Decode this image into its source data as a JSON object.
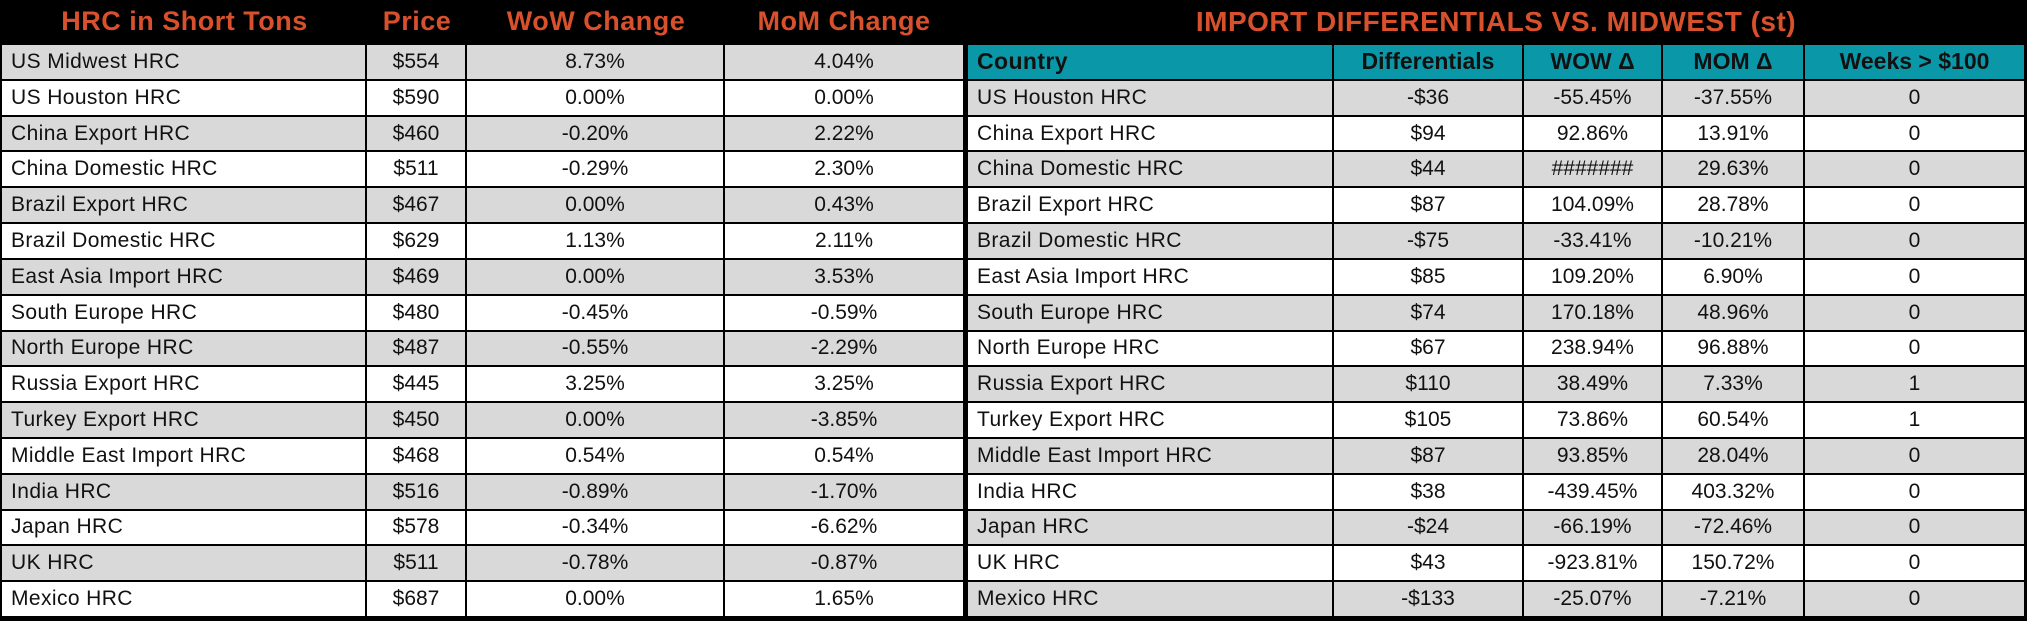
{
  "colors": {
    "accent_orange": "#d8502c",
    "header_black": "#000000",
    "teal_header": "#0a98a8",
    "row_shade_gray": "#d9d9d9"
  },
  "left_table": {
    "header": {
      "name": "HRC in Short Tons",
      "price": "Price",
      "wow": "WoW Change",
      "mom": "MoM Change"
    },
    "rows": [
      {
        "name": "US Midwest HRC",
        "price": "$554",
        "wow": "8.73%",
        "mom": "4.04%"
      },
      {
        "name": "US Houston HRC",
        "price": "$590",
        "wow": "0.00%",
        "mom": "0.00%"
      },
      {
        "name": "China Export HRC",
        "price": "$460",
        "wow": "-0.20%",
        "mom": "2.22%"
      },
      {
        "name": "China Domestic HRC",
        "price": "$511",
        "wow": "-0.29%",
        "mom": "2.30%"
      },
      {
        "name": "Brazil Export HRC",
        "price": "$467",
        "wow": "0.00%",
        "mom": "0.43%"
      },
      {
        "name": "Brazil Domestic HRC",
        "price": "$629",
        "wow": "1.13%",
        "mom": "2.11%"
      },
      {
        "name": "East Asia Import HRC",
        "price": "$469",
        "wow": "0.00%",
        "mom": "3.53%"
      },
      {
        "name": "South Europe HRC",
        "price": "$480",
        "wow": "-0.45%",
        "mom": "-0.59%"
      },
      {
        "name": "North Europe HRC",
        "price": "$487",
        "wow": "-0.55%",
        "mom": "-2.29%"
      },
      {
        "name": "Russia Export HRC",
        "price": "$445",
        "wow": "3.25%",
        "mom": "3.25%"
      },
      {
        "name": "Turkey Export HRC",
        "price": "$450",
        "wow": "0.00%",
        "mom": "-3.85%"
      },
      {
        "name": "Middle East Import HRC",
        "price": "$468",
        "wow": "0.54%",
        "mom": "0.54%"
      },
      {
        "name": "India HRC",
        "price": "$516",
        "wow": "-0.89%",
        "mom": "-1.70%"
      },
      {
        "name": "Japan HRC",
        "price": "$578",
        "wow": "-0.34%",
        "mom": "-6.62%"
      },
      {
        "name": "UK HRC",
        "price": "$511",
        "wow": "-0.78%",
        "mom": "-0.87%"
      },
      {
        "name": "Mexico HRC",
        "price": "$687",
        "wow": "0.00%",
        "mom": "1.65%"
      }
    ]
  },
  "right_table": {
    "title": "IMPORT DIFFERENTIALS VS. MIDWEST (st)",
    "header": {
      "country": "Country",
      "differentials": "Differentials",
      "wow": "WOW Δ",
      "mom": "MOM Δ",
      "weeks": "Weeks > $100"
    },
    "rows": [
      {
        "country": "US Houston HRC",
        "differential": "-$36",
        "wow": "-55.45%",
        "mom": "-37.55%",
        "weeks": "0"
      },
      {
        "country": "China Export HRC",
        "differential": "$94",
        "wow": "92.86%",
        "mom": "13.91%",
        "weeks": "0"
      },
      {
        "country": "China Domestic HRC",
        "differential": "$44",
        "wow": "#######",
        "mom": "29.63%",
        "weeks": "0"
      },
      {
        "country": "Brazil Export HRC",
        "differential": "$87",
        "wow": "104.09%",
        "mom": "28.78%",
        "weeks": "0"
      },
      {
        "country": "Brazil Domestic HRC",
        "differential": "-$75",
        "wow": "-33.41%",
        "mom": "-10.21%",
        "weeks": "0"
      },
      {
        "country": "East Asia Import HRC",
        "differential": "$85",
        "wow": "109.20%",
        "mom": "6.90%",
        "weeks": "0"
      },
      {
        "country": "South Europe HRC",
        "differential": "$74",
        "wow": "170.18%",
        "mom": "48.96%",
        "weeks": "0"
      },
      {
        "country": "North Europe HRC",
        "differential": "$67",
        "wow": "238.94%",
        "mom": "96.88%",
        "weeks": "0"
      },
      {
        "country": "Russia Export HRC",
        "differential": "$110",
        "wow": "38.49%",
        "mom": "7.33%",
        "weeks": "1"
      },
      {
        "country": "Turkey Export HRC",
        "differential": "$105",
        "wow": "73.86%",
        "mom": "60.54%",
        "weeks": "1"
      },
      {
        "country": "Middle East Import HRC",
        "differential": "$87",
        "wow": "93.85%",
        "mom": "28.04%",
        "weeks": "0"
      },
      {
        "country": "India HRC",
        "differential": "$38",
        "wow": "-439.45%",
        "mom": "403.32%",
        "weeks": "0"
      },
      {
        "country": "Japan HRC",
        "differential": "-$24",
        "wow": "-66.19%",
        "mom": "-72.46%",
        "weeks": "0"
      },
      {
        "country": "UK HRC",
        "differential": "$43",
        "wow": "-923.81%",
        "mom": "150.72%",
        "weeks": "0"
      },
      {
        "country": "Mexico HRC",
        "differential": "-$133",
        "wow": "-25.07%",
        "mom": "-7.21%",
        "weeks": "0"
      }
    ]
  }
}
